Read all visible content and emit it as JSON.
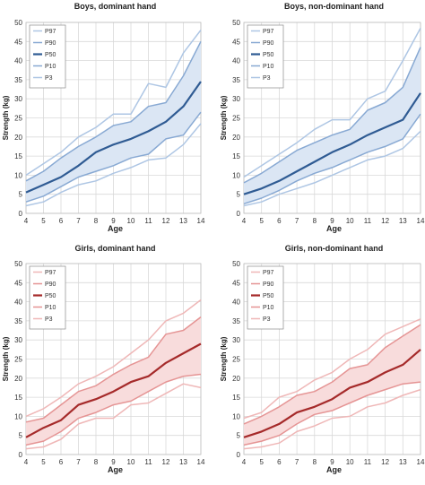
{
  "chart_data": [
    {
      "type": "line",
      "title": "Boys, dominant hand",
      "xlabel": "Age",
      "ylabel": "Strength (kg)",
      "x": [
        4,
        5,
        6,
        7,
        8,
        9,
        10,
        11,
        12,
        13,
        14
      ],
      "xlim": [
        4,
        14
      ],
      "ylim": [
        0,
        50
      ],
      "xticks": [
        4,
        5,
        6,
        7,
        8,
        9,
        10,
        11,
        12,
        13,
        14
      ],
      "yticks": [
        0,
        5,
        10,
        15,
        20,
        25,
        30,
        35,
        40,
        45,
        50
      ],
      "grid": true,
      "legend_position": "top-left",
      "shaded_band": [
        "P90",
        "P10"
      ],
      "band_color": "#dbe6f4",
      "series": [
        {
          "name": "P97",
          "color": "#aec6e4",
          "width": 1.5,
          "values": [
            10,
            13,
            16,
            20,
            22.5,
            26,
            26,
            34,
            33,
            42,
            48
          ]
        },
        {
          "name": "P90",
          "color": "#88a9d3",
          "width": 1.5,
          "values": [
            8.5,
            11,
            14.5,
            17.5,
            20,
            23,
            24,
            28,
            29,
            36,
            45
          ]
        },
        {
          "name": "P50",
          "color": "#2f5b93",
          "width": 2.2,
          "values": [
            5.5,
            7.5,
            9.5,
            12.5,
            16,
            18,
            19.5,
            21.5,
            24,
            28,
            34.5
          ]
        },
        {
          "name": "P10",
          "color": "#88a9d3",
          "width": 1.5,
          "values": [
            3,
            4.5,
            7,
            9.5,
            11,
            12.5,
            14.5,
            15.5,
            19.5,
            20.5,
            26.5
          ]
        },
        {
          "name": "P3",
          "color": "#aec6e4",
          "width": 1.5,
          "values": [
            2,
            3,
            5.5,
            7.5,
            8.5,
            10.5,
            12,
            14,
            14.5,
            18,
            23.5
          ]
        }
      ]
    },
    {
      "type": "line",
      "title": "Boys, non-dominant hand",
      "xlabel": "Age",
      "ylabel": "Strength (kg)",
      "x": [
        4,
        5,
        6,
        7,
        8,
        9,
        10,
        11,
        12,
        13,
        14
      ],
      "xlim": [
        4,
        14
      ],
      "ylim": [
        0,
        50
      ],
      "xticks": [
        4,
        5,
        6,
        7,
        8,
        9,
        10,
        11,
        12,
        13,
        14
      ],
      "yticks": [
        0,
        5,
        10,
        15,
        20,
        25,
        30,
        35,
        40,
        45,
        50
      ],
      "grid": true,
      "legend_position": "top-left",
      "shaded_band": [
        "P90",
        "P10"
      ],
      "band_color": "#dbe6f4",
      "series": [
        {
          "name": "P97",
          "color": "#aec6e4",
          "width": 1.5,
          "values": [
            9.5,
            12.5,
            15.5,
            18.5,
            22,
            24.5,
            24.5,
            30,
            32,
            40,
            48.5
          ]
        },
        {
          "name": "P90",
          "color": "#88a9d3",
          "width": 1.5,
          "values": [
            8,
            10.5,
            13.5,
            16.5,
            18.5,
            20.5,
            22,
            27,
            29,
            33,
            43.5
          ]
        },
        {
          "name": "P50",
          "color": "#2f5b93",
          "width": 2.2,
          "values": [
            5,
            6.5,
            8.5,
            11,
            13.5,
            16,
            18,
            20.5,
            22.5,
            24.5,
            31.5
          ]
        },
        {
          "name": "P10",
          "color": "#88a9d3",
          "width": 1.5,
          "values": [
            2.5,
            4,
            6,
            8.5,
            10.5,
            12,
            14,
            16,
            17.5,
            19.5,
            26
          ]
        },
        {
          "name": "P3",
          "color": "#aec6e4",
          "width": 1.5,
          "values": [
            2,
            3,
            5,
            6.5,
            8,
            10,
            12,
            14,
            15,
            17,
            21.5
          ]
        }
      ]
    },
    {
      "type": "line",
      "title": "Girls, dominant hand",
      "xlabel": "Age",
      "ylabel": "Strength (kg)",
      "x": [
        4,
        5,
        6,
        7,
        8,
        9,
        10,
        11,
        12,
        13,
        14
      ],
      "xlim": [
        4,
        14
      ],
      "ylim": [
        0,
        50
      ],
      "xticks": [
        4,
        5,
        6,
        7,
        8,
        9,
        10,
        11,
        12,
        13,
        14
      ],
      "yticks": [
        0,
        5,
        10,
        15,
        20,
        25,
        30,
        35,
        40,
        45,
        50
      ],
      "grid": true,
      "legend_position": "top-left",
      "shaded_band": [
        "P90",
        "P10"
      ],
      "band_color": "#f8dcdc",
      "series": [
        {
          "name": "P97",
          "color": "#efb7b7",
          "width": 1.5,
          "values": [
            10,
            12,
            15,
            18.5,
            20.5,
            23,
            26.5,
            30,
            35,
            37,
            40.5
          ]
        },
        {
          "name": "P90",
          "color": "#e59494",
          "width": 1.5,
          "values": [
            8.5,
            9.5,
            13,
            16.5,
            18,
            21,
            23.5,
            25.5,
            31.5,
            32.5,
            36
          ]
        },
        {
          "name": "P50",
          "color": "#a52a2a",
          "width": 2.2,
          "values": [
            4.5,
            7,
            9,
            13,
            14.5,
            16.5,
            19,
            20.5,
            24,
            26.5,
            29
          ]
        },
        {
          "name": "P10",
          "color": "#e59494",
          "width": 1.5,
          "values": [
            2.5,
            3.5,
            6,
            9.5,
            11,
            13,
            14,
            16.5,
            19,
            20.5,
            21
          ]
        },
        {
          "name": "P3",
          "color": "#efb7b7",
          "width": 1.5,
          "values": [
            1.5,
            2,
            4,
            8,
            9.5,
            9.5,
            13,
            13.5,
            16,
            18.5,
            17.5
          ]
        }
      ]
    },
    {
      "type": "line",
      "title": "Girls, non-dominant hand",
      "xlabel": "Age",
      "ylabel": "Strength (kg)",
      "x": [
        4,
        5,
        6,
        7,
        8,
        9,
        10,
        11,
        12,
        13,
        14
      ],
      "xlim": [
        4,
        14
      ],
      "ylim": [
        0,
        50
      ],
      "xticks": [
        4,
        5,
        6,
        7,
        8,
        9,
        10,
        11,
        12,
        13,
        14
      ],
      "yticks": [
        0,
        5,
        10,
        15,
        20,
        25,
        30,
        35,
        40,
        45,
        50
      ],
      "grid": true,
      "legend_position": "top-left",
      "shaded_band": [
        "P90",
        "P10"
      ],
      "band_color": "#f8dcdc",
      "series": [
        {
          "name": "P97",
          "color": "#efb7b7",
          "width": 1.5,
          "values": [
            9.5,
            11,
            15,
            16.5,
            19.5,
            21.5,
            25,
            27.5,
            31.5,
            33.5,
            35.5
          ]
        },
        {
          "name": "P90",
          "color": "#e59494",
          "width": 1.5,
          "values": [
            8,
            10,
            12.5,
            15.5,
            16.5,
            19,
            22.5,
            23.5,
            28,
            31,
            34
          ]
        },
        {
          "name": "P50",
          "color": "#a52a2a",
          "width": 2.2,
          "values": [
            4.5,
            6,
            8,
            11,
            12.5,
            14.5,
            17.5,
            19,
            21.5,
            23.5,
            27.5
          ]
        },
        {
          "name": "P10",
          "color": "#e59494",
          "width": 1.5,
          "values": [
            2.5,
            3.5,
            5,
            8,
            10.5,
            11.5,
            13.5,
            15.5,
            17,
            18.5,
            19
          ]
        },
        {
          "name": "P3",
          "color": "#efb7b7",
          "width": 1.5,
          "values": [
            1.5,
            2,
            3,
            6,
            7.5,
            9.5,
            10,
            12.5,
            13.5,
            15.5,
            17
          ]
        }
      ]
    }
  ]
}
